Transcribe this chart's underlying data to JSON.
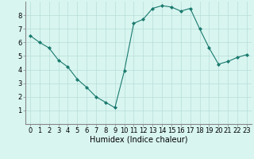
{
  "x": [
    0,
    1,
    2,
    3,
    4,
    5,
    6,
    7,
    8,
    9,
    10,
    11,
    12,
    13,
    14,
    15,
    16,
    17,
    18,
    19,
    20,
    21,
    22,
    23
  ],
  "y": [
    6.5,
    6.0,
    5.6,
    4.7,
    4.2,
    3.3,
    2.7,
    2.0,
    1.6,
    1.2,
    3.9,
    7.4,
    7.7,
    8.5,
    8.7,
    8.6,
    8.3,
    8.5,
    7.0,
    5.6,
    4.4,
    4.6,
    4.9,
    5.1
  ],
  "line_color": "#1a7a6e",
  "marker": "D",
  "marker_size": 2,
  "bg_color": "#d8f5f0",
  "grid_color": "#b8ddd8",
  "xlabel": "Humidex (Indice chaleur)",
  "xlabel_fontsize": 7,
  "tick_fontsize": 6,
  "xlim": [
    -0.5,
    23.5
  ],
  "ylim": [
    0.0,
    9.0
  ],
  "yticks": [
    1,
    2,
    3,
    4,
    5,
    6,
    7,
    8
  ],
  "xticks": [
    0,
    1,
    2,
    3,
    4,
    5,
    6,
    7,
    8,
    9,
    10,
    11,
    12,
    13,
    14,
    15,
    16,
    17,
    18,
    19,
    20,
    21,
    22,
    23
  ],
  "xtick_labels": [
    "0",
    "1",
    "2",
    "3",
    "4",
    "5",
    "6",
    "7",
    "8",
    "9",
    "10",
    "11",
    "12",
    "13",
    "14",
    "15",
    "16",
    "17",
    "18",
    "19",
    "20",
    "21",
    "22",
    "23"
  ]
}
